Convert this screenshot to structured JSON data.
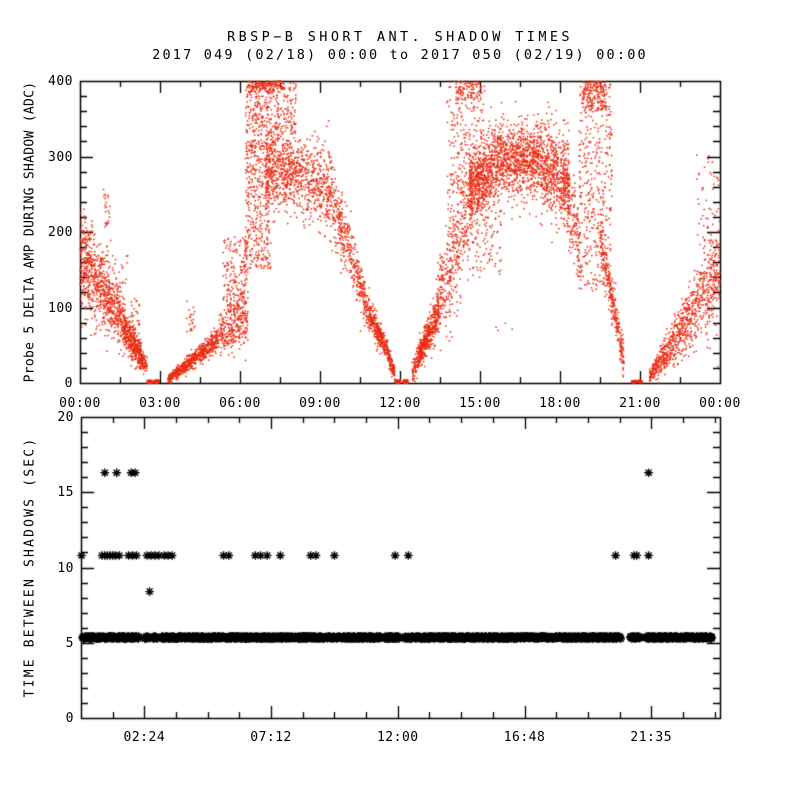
{
  "figure": {
    "title": "RBSP−B SHORT ANT. SHADOW TIMES",
    "subtitle": "2017 049 (02/18) 00:00 to 2017 050 (02/19) 00:00"
  },
  "colors": {
    "background": "#ffffff",
    "foreground": "#000000",
    "top_scatter": "#ea2c12",
    "bottom_scatter": "#000000"
  },
  "chart_data": [
    {
      "type": "scatter",
      "panel": "top",
      "ylabel": "Probe 5 DELTA AMP DURING SHADOW (ADC)",
      "marker": "dot",
      "point_color": "#ea2c12",
      "xlim_hours": [
        0,
        24
      ],
      "ylim": [
        0,
        400
      ],
      "x_ticks": {
        "positions_hours": [
          0,
          3,
          6,
          9,
          12,
          15,
          18,
          21,
          24
        ],
        "labels": [
          "00:00",
          "03:00",
          "06:00",
          "09:00",
          "12:00",
          "15:00",
          "18:00",
          "21:00",
          "00:00"
        ],
        "minor_step_hours": 1.5
      },
      "y_ticks": {
        "values": [
          0,
          100,
          200,
          300,
          400
        ],
        "labels": [
          "0",
          "100",
          "200",
          "300",
          "400"
        ],
        "minor_step": 20
      },
      "cloud_segments": [
        {
          "t0": 0.0,
          "t1": 0.9,
          "c0": 160,
          "c1": 122,
          "s0": 30,
          "s1": 26,
          "n": 420
        },
        {
          "t0": 0.0,
          "t1": 0.55,
          "c0": 195,
          "c1": 188,
          "s0": 16,
          "s1": 16,
          "n": 40
        },
        {
          "t0": 0.9,
          "t1": 1.7,
          "c0": 118,
          "c1": 78,
          "s0": 24,
          "s1": 16,
          "n": 330
        },
        {
          "t0": 1.6,
          "t1": 2.3,
          "c0": 74,
          "c1": 36,
          "s0": 13,
          "s1": 9,
          "n": 360
        },
        {
          "t0": 2.28,
          "t1": 2.52,
          "c0": 32,
          "c1": 24,
          "s0": 6,
          "s1": 5,
          "n": 90
        },
        {
          "t0": 3.3,
          "t1": 5.2,
          "c0": 5,
          "c1": 58,
          "s0": 3,
          "s1": 8,
          "n": 620
        },
        {
          "t0": 5.2,
          "t1": 6.3,
          "c0": 62,
          "c1": 95,
          "s0": 14,
          "s1": 24,
          "n": 330
        },
        {
          "t0": 6.95,
          "t1": 8.3,
          "c0": 280,
          "c1": 280,
          "s0": 25,
          "s1": 25,
          "n": 560
        },
        {
          "t0": 8.3,
          "t1": 9.45,
          "c0": 272,
          "c1": 255,
          "s0": 27,
          "s1": 27,
          "n": 380
        },
        {
          "t0": 9.45,
          "t1": 10.85,
          "c0": 240,
          "c1": 95,
          "s0": 28,
          "s1": 13,
          "n": 430
        },
        {
          "t0": 10.85,
          "t1": 11.55,
          "c0": 88,
          "c1": 42,
          "s0": 11,
          "s1": 7,
          "n": 300
        },
        {
          "t0": 11.55,
          "t1": 11.8,
          "c0": 38,
          "c1": 14,
          "s0": 6,
          "s1": 4,
          "n": 110
        },
        {
          "t0": 12.45,
          "t1": 12.75,
          "c0": 15,
          "c1": 35,
          "s0": 8,
          "s1": 8,
          "n": 90
        },
        {
          "t0": 12.7,
          "t1": 13.45,
          "c0": 35,
          "c1": 95,
          "s0": 8,
          "s1": 14,
          "n": 450
        },
        {
          "t0": 13.4,
          "t1": 14.3,
          "c0": 105,
          "c1": 200,
          "s0": 25,
          "s1": 50,
          "n": 320
        },
        {
          "t0": 14.3,
          "t1": 14.7,
          "c0": 210,
          "c1": 250,
          "s0": 40,
          "s1": 35,
          "n": 150
        },
        {
          "t0": 14.6,
          "t1": 15.6,
          "c0": 255,
          "c1": 290,
          "s0": 26,
          "s1": 24,
          "n": 600
        },
        {
          "t0": 15.6,
          "t1": 17.3,
          "c0": 295,
          "c1": 295,
          "s0": 24,
          "s1": 24,
          "n": 900
        },
        {
          "t0": 17.3,
          "t1": 18.35,
          "c0": 290,
          "c1": 265,
          "s0": 28,
          "s1": 28,
          "n": 550
        },
        {
          "t0": 18.1,
          "t1": 18.75,
          "c0": 270,
          "c1": 180,
          "s0": 30,
          "s1": 30,
          "n": 180
        },
        {
          "t0": 19.5,
          "t1": 20.4,
          "c0": 190,
          "c1": 30,
          "s0": 15,
          "s1": 12,
          "n": 300
        },
        {
          "t0": 21.35,
          "t1": 22.3,
          "c0": 10,
          "c1": 55,
          "s0": 4,
          "s1": 14,
          "n": 300
        },
        {
          "t0": 22.3,
          "t1": 24.0,
          "c0": 55,
          "c1": 150,
          "s0": 16,
          "s1": 34,
          "n": 560
        }
      ],
      "uniform_segments": [
        {
          "t0": 0.85,
          "t1": 1.15,
          "v0": 110,
          "v1": 258,
          "n": 40
        },
        {
          "t0": 1.2,
          "t1": 1.8,
          "v0": 120,
          "v1": 172,
          "n": 22
        },
        {
          "t0": 1.9,
          "t1": 2.25,
          "v0": 18,
          "v1": 112,
          "n": 55
        },
        {
          "t0": 2.52,
          "t1": 2.73,
          "v0": 0,
          "v1": 4,
          "n": 80
        },
        {
          "t0": 2.79,
          "t1": 2.97,
          "v0": 0,
          "v1": 4,
          "n": 70
        },
        {
          "t0": 4.0,
          "t1": 4.3,
          "v0": 60,
          "v1": 112,
          "n": 22
        },
        {
          "t0": 5.35,
          "t1": 6.25,
          "v0": 95,
          "v1": 195,
          "n": 160
        },
        {
          "t0": 6.2,
          "t1": 8.1,
          "v0": 310,
          "v1": 400,
          "n": 400
        },
        {
          "t0": 6.2,
          "t1": 7.15,
          "v0": 150,
          "v1": 315,
          "n": 380
        },
        {
          "t0": 6.3,
          "t1": 7.6,
          "v0": 385,
          "v1": 400,
          "n": 140
        },
        {
          "t0": 11.82,
          "t1": 12.02,
          "v0": 0,
          "v1": 4,
          "n": 90
        },
        {
          "t0": 12.12,
          "t1": 12.3,
          "v0": 0,
          "v1": 4,
          "n": 70
        },
        {
          "t0": 13.75,
          "t1": 15.2,
          "v0": 250,
          "v1": 400,
          "n": 200
        },
        {
          "t0": 14.1,
          "t1": 15.05,
          "v0": 375,
          "v1": 400,
          "n": 90
        },
        {
          "t0": 14.7,
          "t1": 15.8,
          "v0": 140,
          "v1": 250,
          "n": 110
        },
        {
          "t0": 15.4,
          "t1": 16.3,
          "v0": 60,
          "v1": 110,
          "n": 4
        },
        {
          "t0": 18.7,
          "t1": 19.95,
          "v0": 120,
          "v1": 400,
          "n": 420
        },
        {
          "t0": 18.85,
          "t1": 19.75,
          "v0": 360,
          "v1": 400,
          "n": 160
        },
        {
          "t0": 20.68,
          "t1": 20.86,
          "v0": 0.5,
          "v1": 3.5,
          "n": 60
        },
        {
          "t0": 20.9,
          "t1": 21.08,
          "v0": 0.5,
          "v1": 3.5,
          "n": 60
        },
        {
          "t0": 23.1,
          "t1": 24.0,
          "v0": 160,
          "v1": 310,
          "n": 55
        }
      ]
    },
    {
      "type": "scatter",
      "panel": "bottom",
      "ylabel": "TIME BETWEEN SHADOWS (SEC)",
      "marker": "asterisk",
      "point_color": "#000000",
      "xlim_hours": [
        0,
        24.2
      ],
      "ylim": [
        0,
        20
      ],
      "x_ticks": {
        "positions_hours": [
          2.4,
          7.2,
          12.0,
          16.8,
          21.6
        ],
        "labels": [
          "02:24",
          "07:12",
          "12:00",
          "16:48",
          "21:35"
        ],
        "minor_step_hours": 1.2
      },
      "y_ticks": {
        "values": [
          0,
          5,
          10,
          15,
          20
        ],
        "labels": [
          "0",
          "5",
          "10",
          "15",
          "20"
        ],
        "minor_step": 1
      },
      "band": {
        "sec": 5.35,
        "jitter_sec": 0.16,
        "t0": 0.05,
        "t1": 23.9,
        "n": 2300,
        "gaps_hours": [
          [
            2.2,
            2.42
          ],
          [
            2.6,
            2.72
          ],
          [
            2.9,
            3.05
          ],
          [
            11.35,
            11.5
          ],
          [
            12.05,
            12.25
          ],
          [
            20.45,
            20.8
          ],
          [
            21.2,
            21.4
          ]
        ]
      },
      "points": [
        {
          "sec": 10.8,
          "times_hours": [
            0.02,
            0.8,
            0.9,
            1.0,
            1.1,
            1.2,
            1.3,
            1.45,
            1.8,
            1.95,
            2.1,
            2.5,
            2.65,
            2.8,
            2.95,
            3.15,
            3.3,
            3.45,
            5.4,
            5.6,
            6.6,
            6.8,
            7.05,
            7.55,
            8.7,
            8.9,
            9.6,
            11.9,
            12.4,
            20.25,
            20.95,
            21.05,
            21.5
          ]
        },
        {
          "sec": 16.3,
          "times_hours": [
            0.9,
            1.35,
            1.9,
            2.05,
            21.5
          ]
        },
        {
          "sec": 8.4,
          "times_hours": [
            2.6
          ]
        }
      ]
    }
  ]
}
